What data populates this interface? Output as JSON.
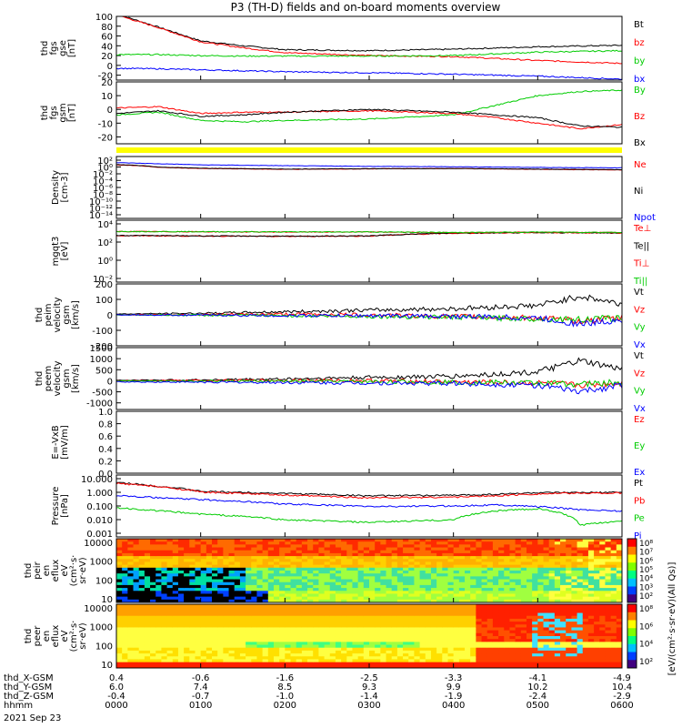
{
  "title": "P3 (TH-D) fields and on-board moments overview",
  "chart_data": [
    {
      "type": "line",
      "id": "fgs_gse",
      "ylabel": [
        "thd",
        "fgs",
        "gse",
        "[nT]"
      ],
      "ylim": [
        -30,
        100
      ],
      "yticks": [
        -20,
        0,
        20,
        40,
        60,
        80,
        100
      ],
      "yticklabels": [
        "-20",
        "0",
        "20",
        "40",
        "60",
        "80",
        "100"
      ],
      "x": [
        0,
        30,
        60,
        90,
        120,
        180,
        240,
        300,
        360
      ],
      "series": [
        {
          "name": "Bt",
          "color": "#000000",
          "values": [
            105,
            78,
            50,
            40,
            32,
            30,
            33,
            38,
            41
          ]
        },
        {
          "name": "bz",
          "color": "#ff0000",
          "values": [
            103,
            77,
            48,
            36,
            26,
            20,
            18,
            10,
            4
          ]
        },
        {
          "name": "by",
          "color": "#00cc00",
          "values": [
            22,
            22,
            20,
            19,
            19,
            19,
            20,
            27,
            30
          ]
        },
        {
          "name": "bx",
          "color": "#0000ff",
          "values": [
            -6,
            -7,
            -9,
            -11,
            -13,
            -15,
            -18,
            -22,
            -28
          ]
        }
      ]
    },
    {
      "type": "line",
      "id": "fgs_gsm",
      "ylabel": [
        "thd",
        "fgs",
        "gsm",
        "[nT]"
      ],
      "ylim": [
        -25,
        20
      ],
      "yticks": [
        -20,
        -10,
        0,
        10,
        20
      ],
      "yticklabels": [
        "-20",
        "-10",
        "0",
        "10",
        "20"
      ],
      "x": [
        0,
        30,
        60,
        90,
        120,
        180,
        240,
        270,
        300,
        330,
        360
      ],
      "series": [
        {
          "name": "By",
          "color": "#00cc00",
          "values": [
            -4,
            -2,
            -8,
            -9,
            -8,
            -7,
            -4,
            3,
            10,
            13,
            14
          ]
        },
        {
          "name": "Bz",
          "color": "#ff0000",
          "values": [
            1,
            2,
            -3,
            -2,
            -2,
            -1,
            -3,
            -6,
            -10,
            -14,
            -11
          ]
        },
        {
          "name": "Bx",
          "color": "#000000",
          "values": [
            -3,
            -1,
            -5,
            -4,
            -2,
            0,
            -2,
            -4,
            -6,
            -12,
            -13
          ]
        }
      ]
    },
    {
      "type": "line",
      "id": "density",
      "ylabel": [
        "Density",
        "[cm-3]"
      ],
      "yscale": "log",
      "ylim": [
        1e-14,
        1000
      ],
      "yticklabels": [
        "10²",
        "10⁰",
        "10⁻²",
        "10⁻⁴",
        "10⁻⁶",
        "10⁻⁸",
        "10⁻¹⁰",
        "10⁻¹²",
        "10⁻¹⁴"
      ],
      "x": [
        0,
        30,
        60,
        120,
        180,
        240,
        300,
        360
      ],
      "series": [
        {
          "name": "Ne",
          "color": "#ff0000",
          "values": [
            5,
            1,
            0.5,
            0.3,
            0.4,
            0.5,
            0.3,
            0.2
          ]
        },
        {
          "name": "Ni",
          "color": "#000000",
          "values": [
            6,
            1.2,
            0.6,
            0.35,
            0.45,
            0.5,
            0.35,
            0.25
          ]
        },
        {
          "name": "Npot",
          "color": "#0000ff",
          "values": [
            20,
            10,
            5,
            3,
            2,
            1.5,
            1,
            0.8
          ]
        }
      ]
    },
    {
      "type": "line",
      "id": "temperature",
      "ylabel": [
        "mgqt3",
        "[eV]"
      ],
      "yscale": "log",
      "ylim": [
        0.001,
        100000
      ],
      "yticklabels": [
        "10⁴",
        "10²",
        "10⁰",
        "10⁻²"
      ],
      "x": [
        0,
        60,
        120,
        180,
        240,
        300,
        360
      ],
      "series": [
        {
          "name": "Te⊥",
          "color": "#ff0000",
          "values": [
            1000,
            900,
            800,
            900,
            2000,
            2500,
            2200
          ]
        },
        {
          "name": "Te||",
          "color": "#000000",
          "values": [
            1100,
            950,
            850,
            950,
            2200,
            2600,
            2300
          ]
        },
        {
          "name": "Ti⊥",
          "color": "#ff0000",
          "values": [
            3500,
            3200,
            3000,
            3000,
            2500,
            2800,
            2600
          ]
        },
        {
          "name": "Ti||",
          "color": "#00cc00",
          "values": [
            3600,
            3300,
            3100,
            3100,
            2600,
            2900,
            2700
          ]
        }
      ]
    },
    {
      "type": "line",
      "id": "peim_velocity",
      "ylabel": [
        "thd",
        "peim",
        "velocity",
        "gsm",
        "[km/s]"
      ],
      "ylim": [
        -200,
        200
      ],
      "yticks": [
        -200,
        -100,
        0,
        100,
        200
      ],
      "yticklabels": [
        "-200",
        "-100",
        "0",
        "100",
        "200"
      ],
      "x": [
        0,
        60,
        120,
        180,
        240,
        300,
        330,
        360
      ],
      "series": [
        {
          "name": "Vt",
          "color": "#000000",
          "values": [
            5,
            10,
            20,
            30,
            40,
            60,
            120,
            70
          ]
        },
        {
          "name": "Vz",
          "color": "#ff0000",
          "values": [
            0,
            2,
            5,
            0,
            -10,
            -20,
            -40,
            -20
          ]
        },
        {
          "name": "Vy",
          "color": "#00cc00",
          "values": [
            0,
            -2,
            -5,
            -10,
            -15,
            -25,
            -30,
            -20
          ]
        },
        {
          "name": "Vx",
          "color": "#0000ff",
          "values": [
            0,
            -2,
            -5,
            -5,
            -10,
            -20,
            -60,
            -30
          ]
        }
      ]
    },
    {
      "type": "line",
      "id": "peem_velocity",
      "ylabel": [
        "thd",
        "peem",
        "velocity",
        "gsm",
        "[km/s]"
      ],
      "ylim": [
        -1300,
        1500
      ],
      "yticks": [
        -1000,
        -500,
        0,
        500,
        1000,
        1500
      ],
      "yticklabels": [
        "-1000",
        "-500",
        "0",
        "500",
        "1000",
        "1500"
      ],
      "x": [
        0,
        60,
        120,
        180,
        240,
        300,
        330,
        360
      ],
      "series": [
        {
          "name": "Vt",
          "color": "#000000",
          "values": [
            20,
            40,
            80,
            150,
            200,
            400,
            900,
            500
          ]
        },
        {
          "name": "Vz",
          "color": "#ff0000",
          "values": [
            0,
            10,
            20,
            10,
            -50,
            -100,
            -200,
            -100
          ]
        },
        {
          "name": "Vy",
          "color": "#00cc00",
          "values": [
            0,
            -10,
            -20,
            -40,
            -60,
            -100,
            -150,
            -80
          ]
        },
        {
          "name": "Vx",
          "color": "#0000ff",
          "values": [
            -50,
            -60,
            -80,
            -100,
            -120,
            -200,
            -500,
            -200
          ]
        }
      ]
    },
    {
      "type": "line",
      "id": "efield",
      "ylabel": [
        "E=-VxB",
        "[mV/m]"
      ],
      "ylim": [
        0,
        1
      ],
      "yticks": [
        0,
        0.2,
        0.4,
        0.6,
        0.8,
        1.0
      ],
      "yticklabels": [
        "0.0",
        "0.2",
        "0.4",
        "0.6",
        "0.8",
        "1.0"
      ],
      "x": [],
      "series": [
        {
          "name": "Ez",
          "color": "#ff0000",
          "values": []
        },
        {
          "name": "Ey",
          "color": "#00cc00",
          "values": []
        },
        {
          "name": "Ex",
          "color": "#0000ff",
          "values": []
        }
      ]
    },
    {
      "type": "line",
      "id": "pressure",
      "ylabel": [
        "Pressure",
        "[nPa]"
      ],
      "yscale": "log",
      "ylim": [
        0.0008,
        15
      ],
      "yticklabels": [
        "10.000",
        "1.000",
        "0.100",
        "0.010",
        "0.001"
      ],
      "x": [
        0,
        30,
        60,
        120,
        180,
        240,
        270,
        300,
        330,
        360
      ],
      "series": [
        {
          "name": "Pt",
          "color": "#000000",
          "values": [
            4.5,
            2.5,
            1.1,
            0.8,
            0.55,
            0.6,
            0.7,
            0.9,
            0.9,
            0.95
          ]
        },
        {
          "name": "Pb",
          "color": "#ff0000",
          "values": [
            4,
            2.3,
            1.0,
            0.6,
            0.4,
            0.45,
            0.55,
            0.75,
            0.85,
            0.85
          ]
        },
        {
          "name": "Pe",
          "color": "#00cc00",
          "values": [
            0.08,
            0.05,
            0.03,
            0.012,
            0.008,
            0.012,
            0.05,
            0.07,
            0.005,
            0.01
          ]
        },
        {
          "name": "Pi",
          "color": "#0000ff",
          "values": [
            0.6,
            0.4,
            0.3,
            0.15,
            0.1,
            0.11,
            0.13,
            0.1,
            0.06,
            0.05
          ]
        }
      ]
    },
    {
      "type": "heatmap",
      "id": "peir_spectrogram",
      "ylabel": [
        "thd",
        "peir",
        "en",
        "eflux",
        "eV",
        "(cm²·s·",
        "sr·eV)"
      ],
      "yscale": "log",
      "ylim": [
        7,
        25000
      ],
      "yticklabels": [
        "10000",
        "1000",
        "100",
        "10"
      ]
    },
    {
      "type": "heatmap",
      "id": "peer_spectrogram",
      "ylabel": [
        "thd",
        "peer",
        "en",
        "eflux",
        "eV",
        "(cm²·s·",
        "sr·eV)"
      ],
      "yscale": "log",
      "ylim": [
        7,
        25000
      ],
      "yticklabels": [
        "10000",
        "1000",
        "100",
        "10"
      ]
    }
  ],
  "right_labels": {
    "fgs_gse": [
      "Bt",
      "bz",
      "by",
      "bx"
    ],
    "fgs_gsm": [
      "By",
      "Bz",
      "Bx"
    ],
    "density": [
      "Ne",
      "Ni",
      "Npot"
    ],
    "temperature": [
      "Te⊥",
      "Te||",
      "Ti⊥",
      "Ti||"
    ],
    "peim_velocity": [
      "Vt",
      "Vz",
      "Vy",
      "Vx"
    ],
    "peem_velocity": [
      "Vt",
      "Vz",
      "Vy",
      "Vx"
    ],
    "efield": [
      "Ez",
      "Ey",
      "Ex"
    ],
    "pressure": [
      "Pt",
      "Pb",
      "Pe",
      "Pi"
    ]
  },
  "colorbar_label": "[eV/(cm²·s·sr·eV)(All Qs)]",
  "colorbar_ticks": [
    "10⁸",
    "10⁷",
    "10⁶",
    "10⁵",
    "10⁴",
    "10³",
    "10²"
  ],
  "colorbar2_ticks": [
    "10⁸",
    "10⁶",
    "10⁴",
    "10²"
  ],
  "xaxis": {
    "rows": [
      {
        "label": "thd_X-GSM",
        "values": [
          "0.4",
          "-0.6",
          "-1.6",
          "-2.5",
          "-3.3",
          "-4.1",
          "-4.9"
        ]
      },
      {
        "label": "thd_Y-GSM",
        "values": [
          "6.0",
          "7.4",
          "8.5",
          "9.3",
          "9.9",
          "10.2",
          "10.4"
        ]
      },
      {
        "label": "thd_Z-GSM",
        "values": [
          "-0.4",
          "-0.7",
          "-1.0",
          "-1.4",
          "-1.9",
          "-2.4",
          "-2.9"
        ]
      },
      {
        "label": "hhmm",
        "values": [
          "0000",
          "0100",
          "0200",
          "0300",
          "0400",
          "0500",
          "0600"
        ]
      }
    ],
    "date": "2021 Sep 23"
  },
  "colors": {
    "red": "#ff0000",
    "green": "#00cc00",
    "blue": "#0000ff",
    "black": "#000000",
    "yellow": "#ffff00"
  }
}
